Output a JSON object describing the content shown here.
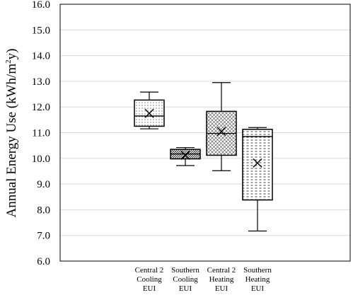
{
  "chart_data": {
    "type": "box",
    "title": "",
    "xlabel": "",
    "ylabel": "Annual Energy Use (kWh/m",
    "ylabel_sup": "2",
    "ylabel_tail": "y)",
    "ylim": [
      6.0,
      16.0
    ],
    "yticks": [
      "6.0",
      "7.0",
      "8.0",
      "9.0",
      "10.0",
      "11.0",
      "12.0",
      "13.0",
      "14.0",
      "15.0",
      "16.0"
    ],
    "ytick_values": [
      6,
      7,
      8,
      9,
      10,
      11,
      12,
      13,
      14,
      15,
      16
    ],
    "grid": true,
    "categories": [
      {
        "lines": [
          "Central 2",
          "Cooling",
          "EUI"
        ],
        "min": 11.15,
        "q1": 11.25,
        "median": 11.65,
        "q3": 12.27,
        "max": 12.58,
        "mean": 11.75,
        "pattern": "dots"
      },
      {
        "lines": [
          "Southern",
          "Cooling",
          "EUI"
        ],
        "min": 9.72,
        "q1": 9.98,
        "median": 10.17,
        "q3": 10.35,
        "max": 10.42,
        "mean": 10.12,
        "pattern": "diagonal-dense"
      },
      {
        "lines": [
          "Central 2",
          "Heating",
          "EUI"
        ],
        "min": 9.52,
        "q1": 10.12,
        "median": 10.97,
        "q3": 11.83,
        "max": 12.95,
        "mean": 11.05,
        "pattern": "crosshatch"
      },
      {
        "lines": [
          "Southern",
          "Heating",
          "EUI"
        ],
        "min": 7.17,
        "q1": 8.38,
        "median": 10.85,
        "q3": 11.13,
        "max": 11.2,
        "mean": 9.82,
        "pattern": "dashes"
      }
    ]
  }
}
